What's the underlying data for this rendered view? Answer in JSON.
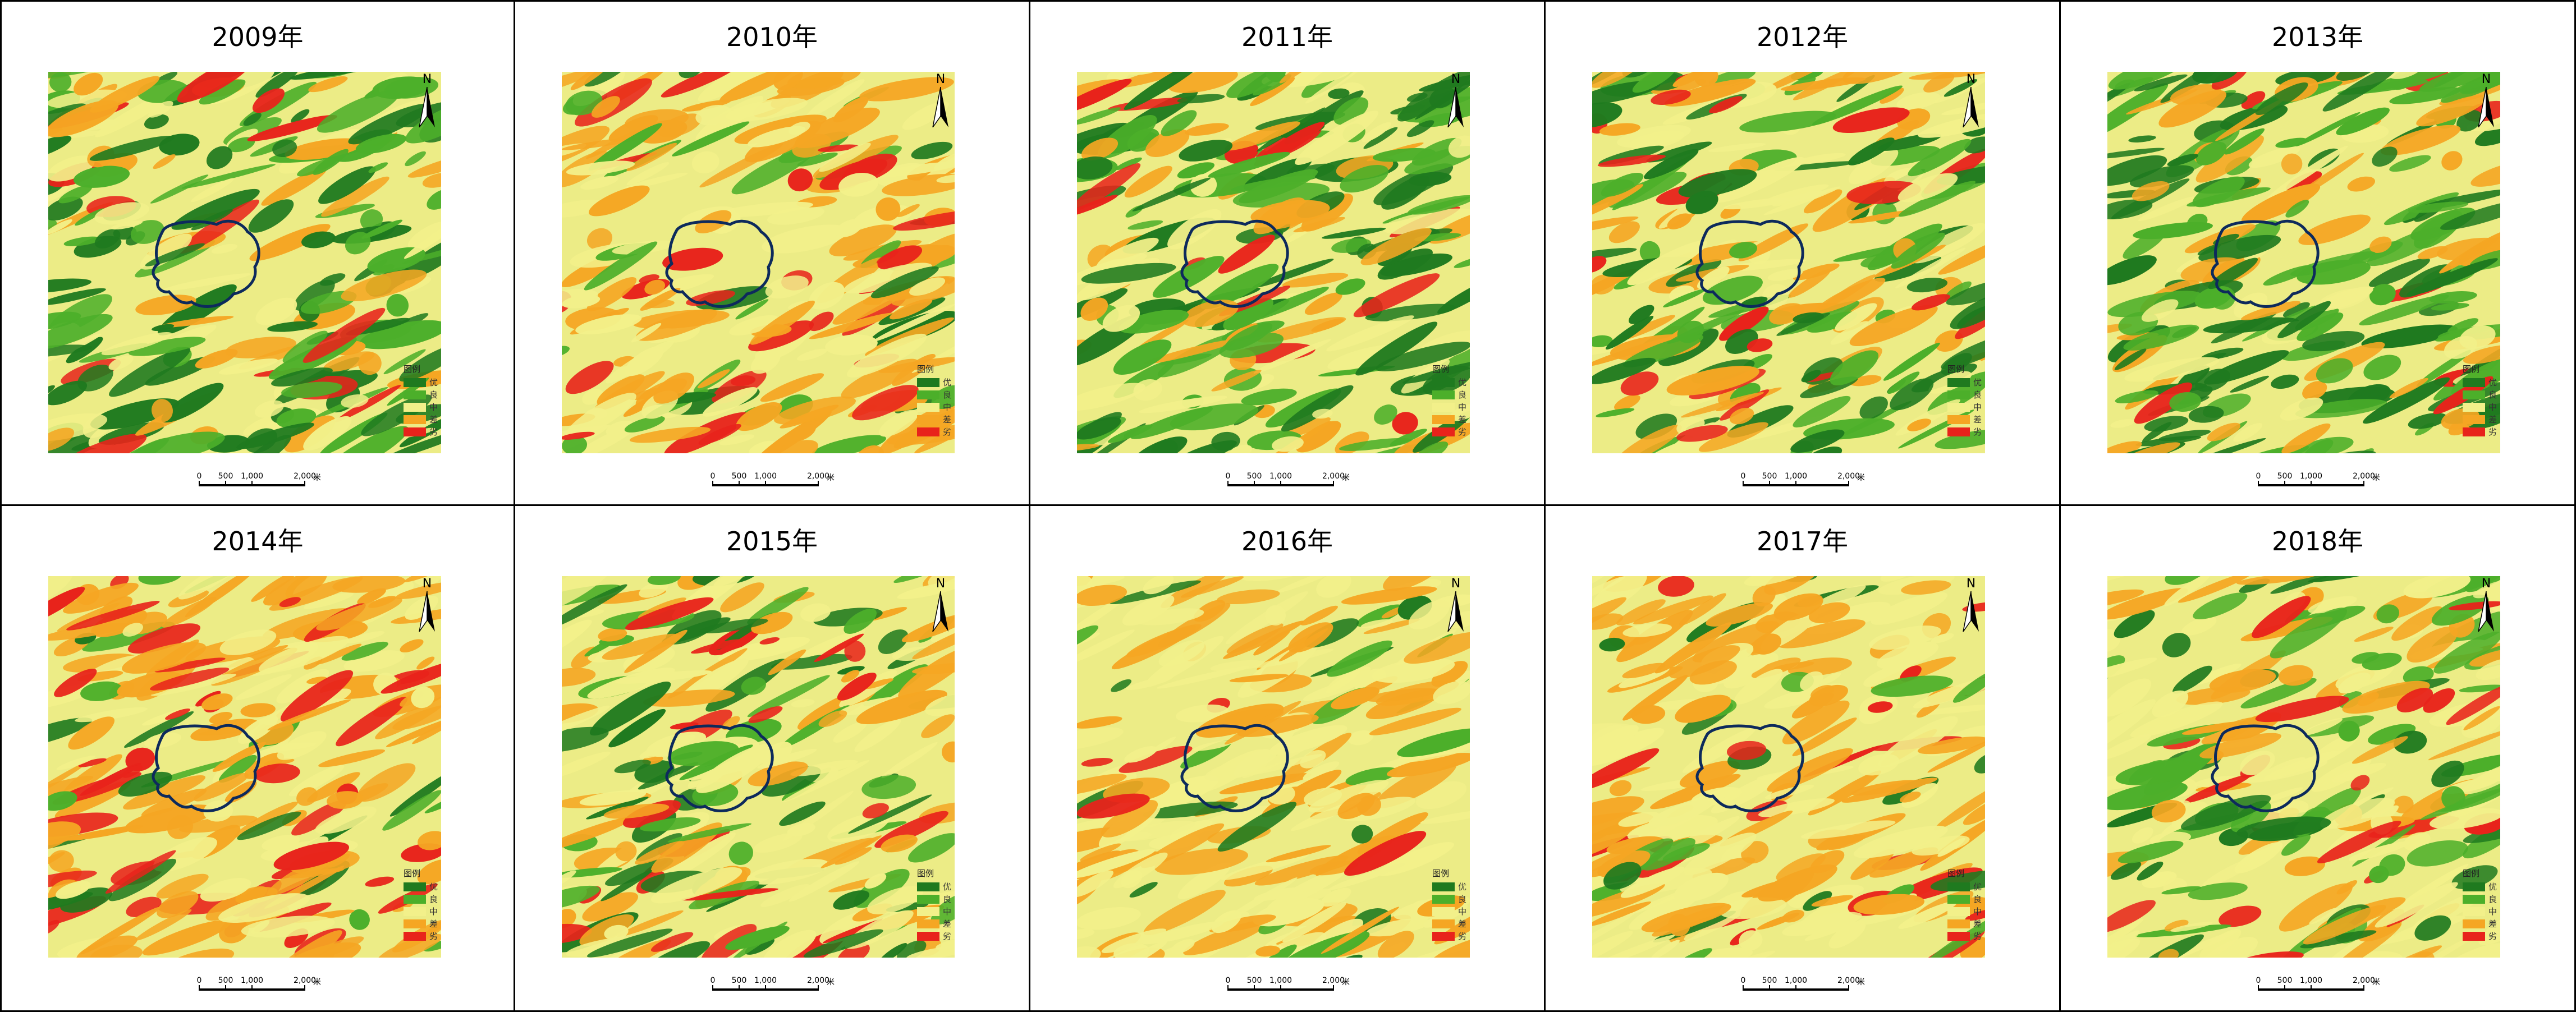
{
  "panels": [
    {
      "title": "2009年"
    },
    {
      "title": "2010年"
    },
    {
      "title": "2011年"
    },
    {
      "title": "2012年"
    },
    {
      "title": "2013年"
    },
    {
      "title": "2014年"
    },
    {
      "title": "2015年"
    },
    {
      "title": "2016年"
    },
    {
      "title": "2017年"
    },
    {
      "title": "2018年"
    }
  ],
  "north_label": "N",
  "legend": {
    "title": "图例",
    "items": [
      {
        "label": "优",
        "color": "#1f7a1f"
      },
      {
        "label": "良",
        "color": "#4caf2a"
      },
      {
        "label": "中",
        "color": "#f2f08a"
      },
      {
        "label": "差",
        "color": "#f5a623"
      },
      {
        "label": "劣",
        "color": "#e8231b"
      }
    ]
  },
  "scale": {
    "ticks": [
      "0",
      "500",
      "1,000",
      "2,000",
      "米"
    ]
  },
  "colors": {
    "boundary": "#0d2a5c",
    "background_yellow": "#ecec86",
    "orange": "#f2a22a",
    "red": "#e8231b",
    "green_dark": "#2f7f22",
    "green_light": "#6cb83a"
  }
}
